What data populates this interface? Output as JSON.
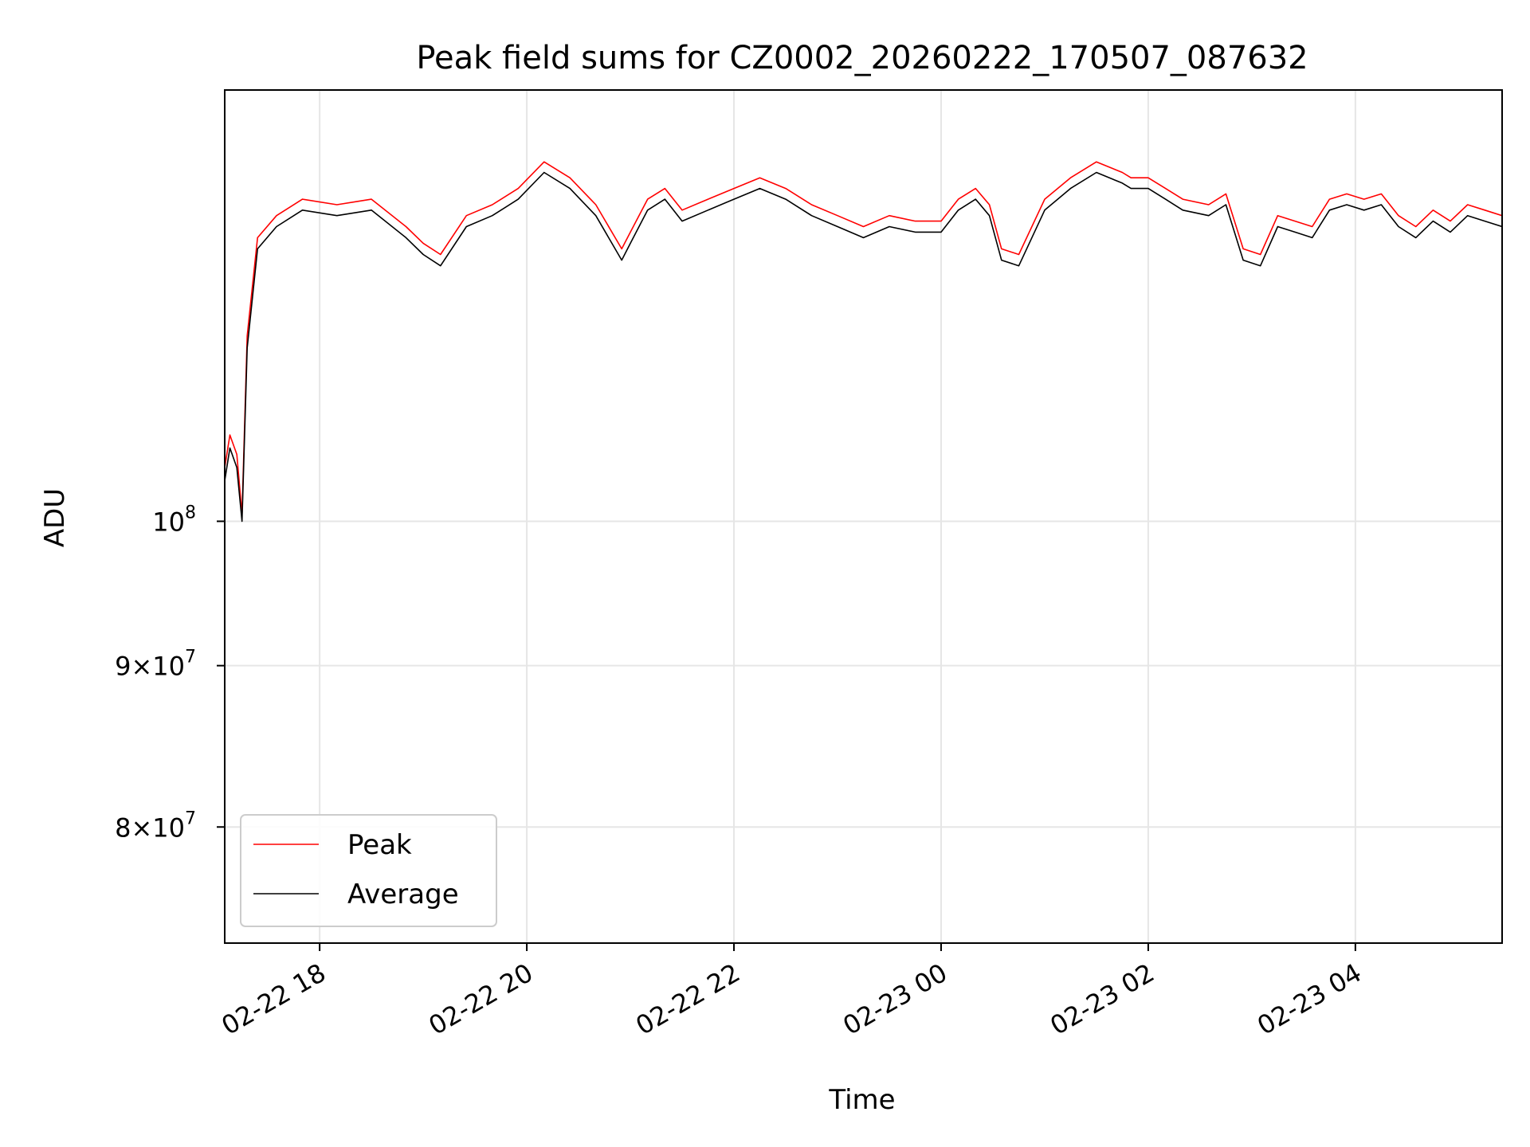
{
  "chart_data": {
    "type": "line",
    "title": "Peak field sums for CZ0002_20260222_170507_087632",
    "xlabel": "Time",
    "ylabel": "ADU",
    "yscale": "log",
    "grid": true,
    "legend_position": "lower-left",
    "xlim": [
      "2026-02-22 17:05",
      "2026-02-23 05:25"
    ],
    "ylim": [
      73500000,
      137000000
    ],
    "x_ticks": [
      {
        "value": "2026-02-22 18:00",
        "label": "02-22 18"
      },
      {
        "value": "2026-02-22 20:00",
        "label": "02-22 20"
      },
      {
        "value": "2026-02-22 22:00",
        "label": "02-22 22"
      },
      {
        "value": "2026-02-23 00:00",
        "label": "02-23 00"
      },
      {
        "value": "2026-02-23 02:00",
        "label": "02-23 02"
      },
      {
        "value": "2026-02-23 04:00",
        "label": "02-23 04"
      }
    ],
    "y_ticks": [
      {
        "value": 100000000,
        "mantissa": "",
        "base": "10",
        "exp": "8"
      },
      {
        "value": 90000000,
        "mantissa": "9×",
        "base": "10",
        "exp": "7"
      },
      {
        "value": 80000000,
        "mantissa": "8×",
        "base": "10",
        "exp": "7"
      }
    ],
    "series": [
      {
        "name": "Peak",
        "color": "#ff0000",
        "points": [
          [
            "2026-02-22 17:05",
            104000000
          ],
          [
            "2026-02-22 17:08",
            106500000
          ],
          [
            "2026-02-22 17:12",
            105000000
          ],
          [
            "2026-02-22 17:15",
            100500000
          ],
          [
            "2026-02-22 17:18",
            114500000
          ],
          [
            "2026-02-22 17:24",
            123000000
          ],
          [
            "2026-02-22 17:35",
            125000000
          ],
          [
            "2026-02-22 17:50",
            126500000
          ],
          [
            "2026-02-22 18:10",
            126000000
          ],
          [
            "2026-02-22 18:30",
            126500000
          ],
          [
            "2026-02-22 18:50",
            124000000
          ],
          [
            "2026-02-22 19:00",
            122500000
          ],
          [
            "2026-02-22 19:10",
            121500000
          ],
          [
            "2026-02-22 19:25",
            125000000
          ],
          [
            "2026-02-22 19:40",
            126000000
          ],
          [
            "2026-02-22 19:55",
            127500000
          ],
          [
            "2026-02-22 20:10",
            130000000
          ],
          [
            "2026-02-22 20:25",
            128500000
          ],
          [
            "2026-02-22 20:40",
            126000000
          ],
          [
            "2026-02-22 20:55",
            122000000
          ],
          [
            "2026-02-22 21:00",
            123500000
          ],
          [
            "2026-02-22 21:10",
            126500000
          ],
          [
            "2026-02-22 21:20",
            127500000
          ],
          [
            "2026-02-22 21:30",
            125500000
          ],
          [
            "2026-02-22 21:45",
            126500000
          ],
          [
            "2026-02-22 22:00",
            127500000
          ],
          [
            "2026-02-22 22:15",
            128500000
          ],
          [
            "2026-02-22 22:30",
            127500000
          ],
          [
            "2026-02-22 22:45",
            126000000
          ],
          [
            "2026-02-22 23:00",
            125000000
          ],
          [
            "2026-02-22 23:15",
            124000000
          ],
          [
            "2026-02-22 23:30",
            125000000
          ],
          [
            "2026-02-22 23:45",
            124500000
          ],
          [
            "2026-02-23 00:00",
            124500000
          ],
          [
            "2026-02-23 00:10",
            126500000
          ],
          [
            "2026-02-23 00:20",
            127500000
          ],
          [
            "2026-02-23 00:28",
            126000000
          ],
          [
            "2026-02-23 00:35",
            122000000
          ],
          [
            "2026-02-23 00:45",
            121500000
          ],
          [
            "2026-02-23 01:00",
            126500000
          ],
          [
            "2026-02-23 01:15",
            128500000
          ],
          [
            "2026-02-23 01:30",
            130000000
          ],
          [
            "2026-02-23 01:45",
            129000000
          ],
          [
            "2026-02-23 01:50",
            128500000
          ],
          [
            "2026-02-23 02:00",
            128500000
          ],
          [
            "2026-02-23 02:10",
            127500000
          ],
          [
            "2026-02-23 02:20",
            126500000
          ],
          [
            "2026-02-23 02:35",
            126000000
          ],
          [
            "2026-02-23 02:45",
            127000000
          ],
          [
            "2026-02-23 02:55",
            122000000
          ],
          [
            "2026-02-23 03:05",
            121500000
          ],
          [
            "2026-02-23 03:15",
            125000000
          ],
          [
            "2026-02-23 03:25",
            124500000
          ],
          [
            "2026-02-23 03:35",
            124000000
          ],
          [
            "2026-02-23 03:45",
            126500000
          ],
          [
            "2026-02-23 03:55",
            127000000
          ],
          [
            "2026-02-23 04:05",
            126500000
          ],
          [
            "2026-02-23 04:15",
            127000000
          ],
          [
            "2026-02-23 04:25",
            125000000
          ],
          [
            "2026-02-23 04:35",
            124000000
          ],
          [
            "2026-02-23 04:45",
            125500000
          ],
          [
            "2026-02-23 04:55",
            124500000
          ],
          [
            "2026-02-23 05:05",
            126000000
          ],
          [
            "2026-02-23 05:15",
            125500000
          ],
          [
            "2026-02-23 05:25",
            125000000
          ]
        ]
      },
      {
        "name": "Average",
        "color": "#000000",
        "points": [
          [
            "2026-02-22 17:05",
            103000000
          ],
          [
            "2026-02-22 17:08",
            105500000
          ],
          [
            "2026-02-22 17:12",
            104000000
          ],
          [
            "2026-02-22 17:15",
            100000000
          ],
          [
            "2026-02-22 17:18",
            113500000
          ],
          [
            "2026-02-22 17:24",
            122000000
          ],
          [
            "2026-02-22 17:35",
            124000000
          ],
          [
            "2026-02-22 17:50",
            125500000
          ],
          [
            "2026-02-22 18:10",
            125000000
          ],
          [
            "2026-02-22 18:30",
            125500000
          ],
          [
            "2026-02-22 18:50",
            123000000
          ],
          [
            "2026-02-22 19:00",
            121500000
          ],
          [
            "2026-02-22 19:10",
            120500000
          ],
          [
            "2026-02-22 19:25",
            124000000
          ],
          [
            "2026-02-22 19:40",
            125000000
          ],
          [
            "2026-02-22 19:55",
            126500000
          ],
          [
            "2026-02-22 20:10",
            129000000
          ],
          [
            "2026-02-22 20:25",
            127500000
          ],
          [
            "2026-02-22 20:40",
            125000000
          ],
          [
            "2026-02-22 20:55",
            121000000
          ],
          [
            "2026-02-22 21:00",
            122500000
          ],
          [
            "2026-02-22 21:10",
            125500000
          ],
          [
            "2026-02-22 21:20",
            126500000
          ],
          [
            "2026-02-22 21:30",
            124500000
          ],
          [
            "2026-02-22 21:45",
            125500000
          ],
          [
            "2026-02-22 22:00",
            126500000
          ],
          [
            "2026-02-22 22:15",
            127500000
          ],
          [
            "2026-02-22 22:30",
            126500000
          ],
          [
            "2026-02-22 22:45",
            125000000
          ],
          [
            "2026-02-22 23:00",
            124000000
          ],
          [
            "2026-02-22 23:15",
            123000000
          ],
          [
            "2026-02-22 23:30",
            124000000
          ],
          [
            "2026-02-22 23:45",
            123500000
          ],
          [
            "2026-02-23 00:00",
            123500000
          ],
          [
            "2026-02-23 00:10",
            125500000
          ],
          [
            "2026-02-23 00:20",
            126500000
          ],
          [
            "2026-02-23 00:28",
            125000000
          ],
          [
            "2026-02-23 00:35",
            121000000
          ],
          [
            "2026-02-23 00:45",
            120500000
          ],
          [
            "2026-02-23 01:00",
            125500000
          ],
          [
            "2026-02-23 01:15",
            127500000
          ],
          [
            "2026-02-23 01:30",
            129000000
          ],
          [
            "2026-02-23 01:45",
            128000000
          ],
          [
            "2026-02-23 01:50",
            127500000
          ],
          [
            "2026-02-23 02:00",
            127500000
          ],
          [
            "2026-02-23 02:10",
            126500000
          ],
          [
            "2026-02-23 02:20",
            125500000
          ],
          [
            "2026-02-23 02:35",
            125000000
          ],
          [
            "2026-02-23 02:45",
            126000000
          ],
          [
            "2026-02-23 02:55",
            121000000
          ],
          [
            "2026-02-23 03:05",
            120500000
          ],
          [
            "2026-02-23 03:15",
            124000000
          ],
          [
            "2026-02-23 03:25",
            123500000
          ],
          [
            "2026-02-23 03:35",
            123000000
          ],
          [
            "2026-02-23 03:45",
            125500000
          ],
          [
            "2026-02-23 03:55",
            126000000
          ],
          [
            "2026-02-23 04:05",
            125500000
          ],
          [
            "2026-02-23 04:15",
            126000000
          ],
          [
            "2026-02-23 04:25",
            124000000
          ],
          [
            "2026-02-23 04:35",
            123000000
          ],
          [
            "2026-02-23 04:45",
            124500000
          ],
          [
            "2026-02-23 04:55",
            123500000
          ],
          [
            "2026-02-23 05:05",
            125000000
          ],
          [
            "2026-02-23 05:15",
            124500000
          ],
          [
            "2026-02-23 05:25",
            124000000
          ]
        ]
      }
    ]
  }
}
